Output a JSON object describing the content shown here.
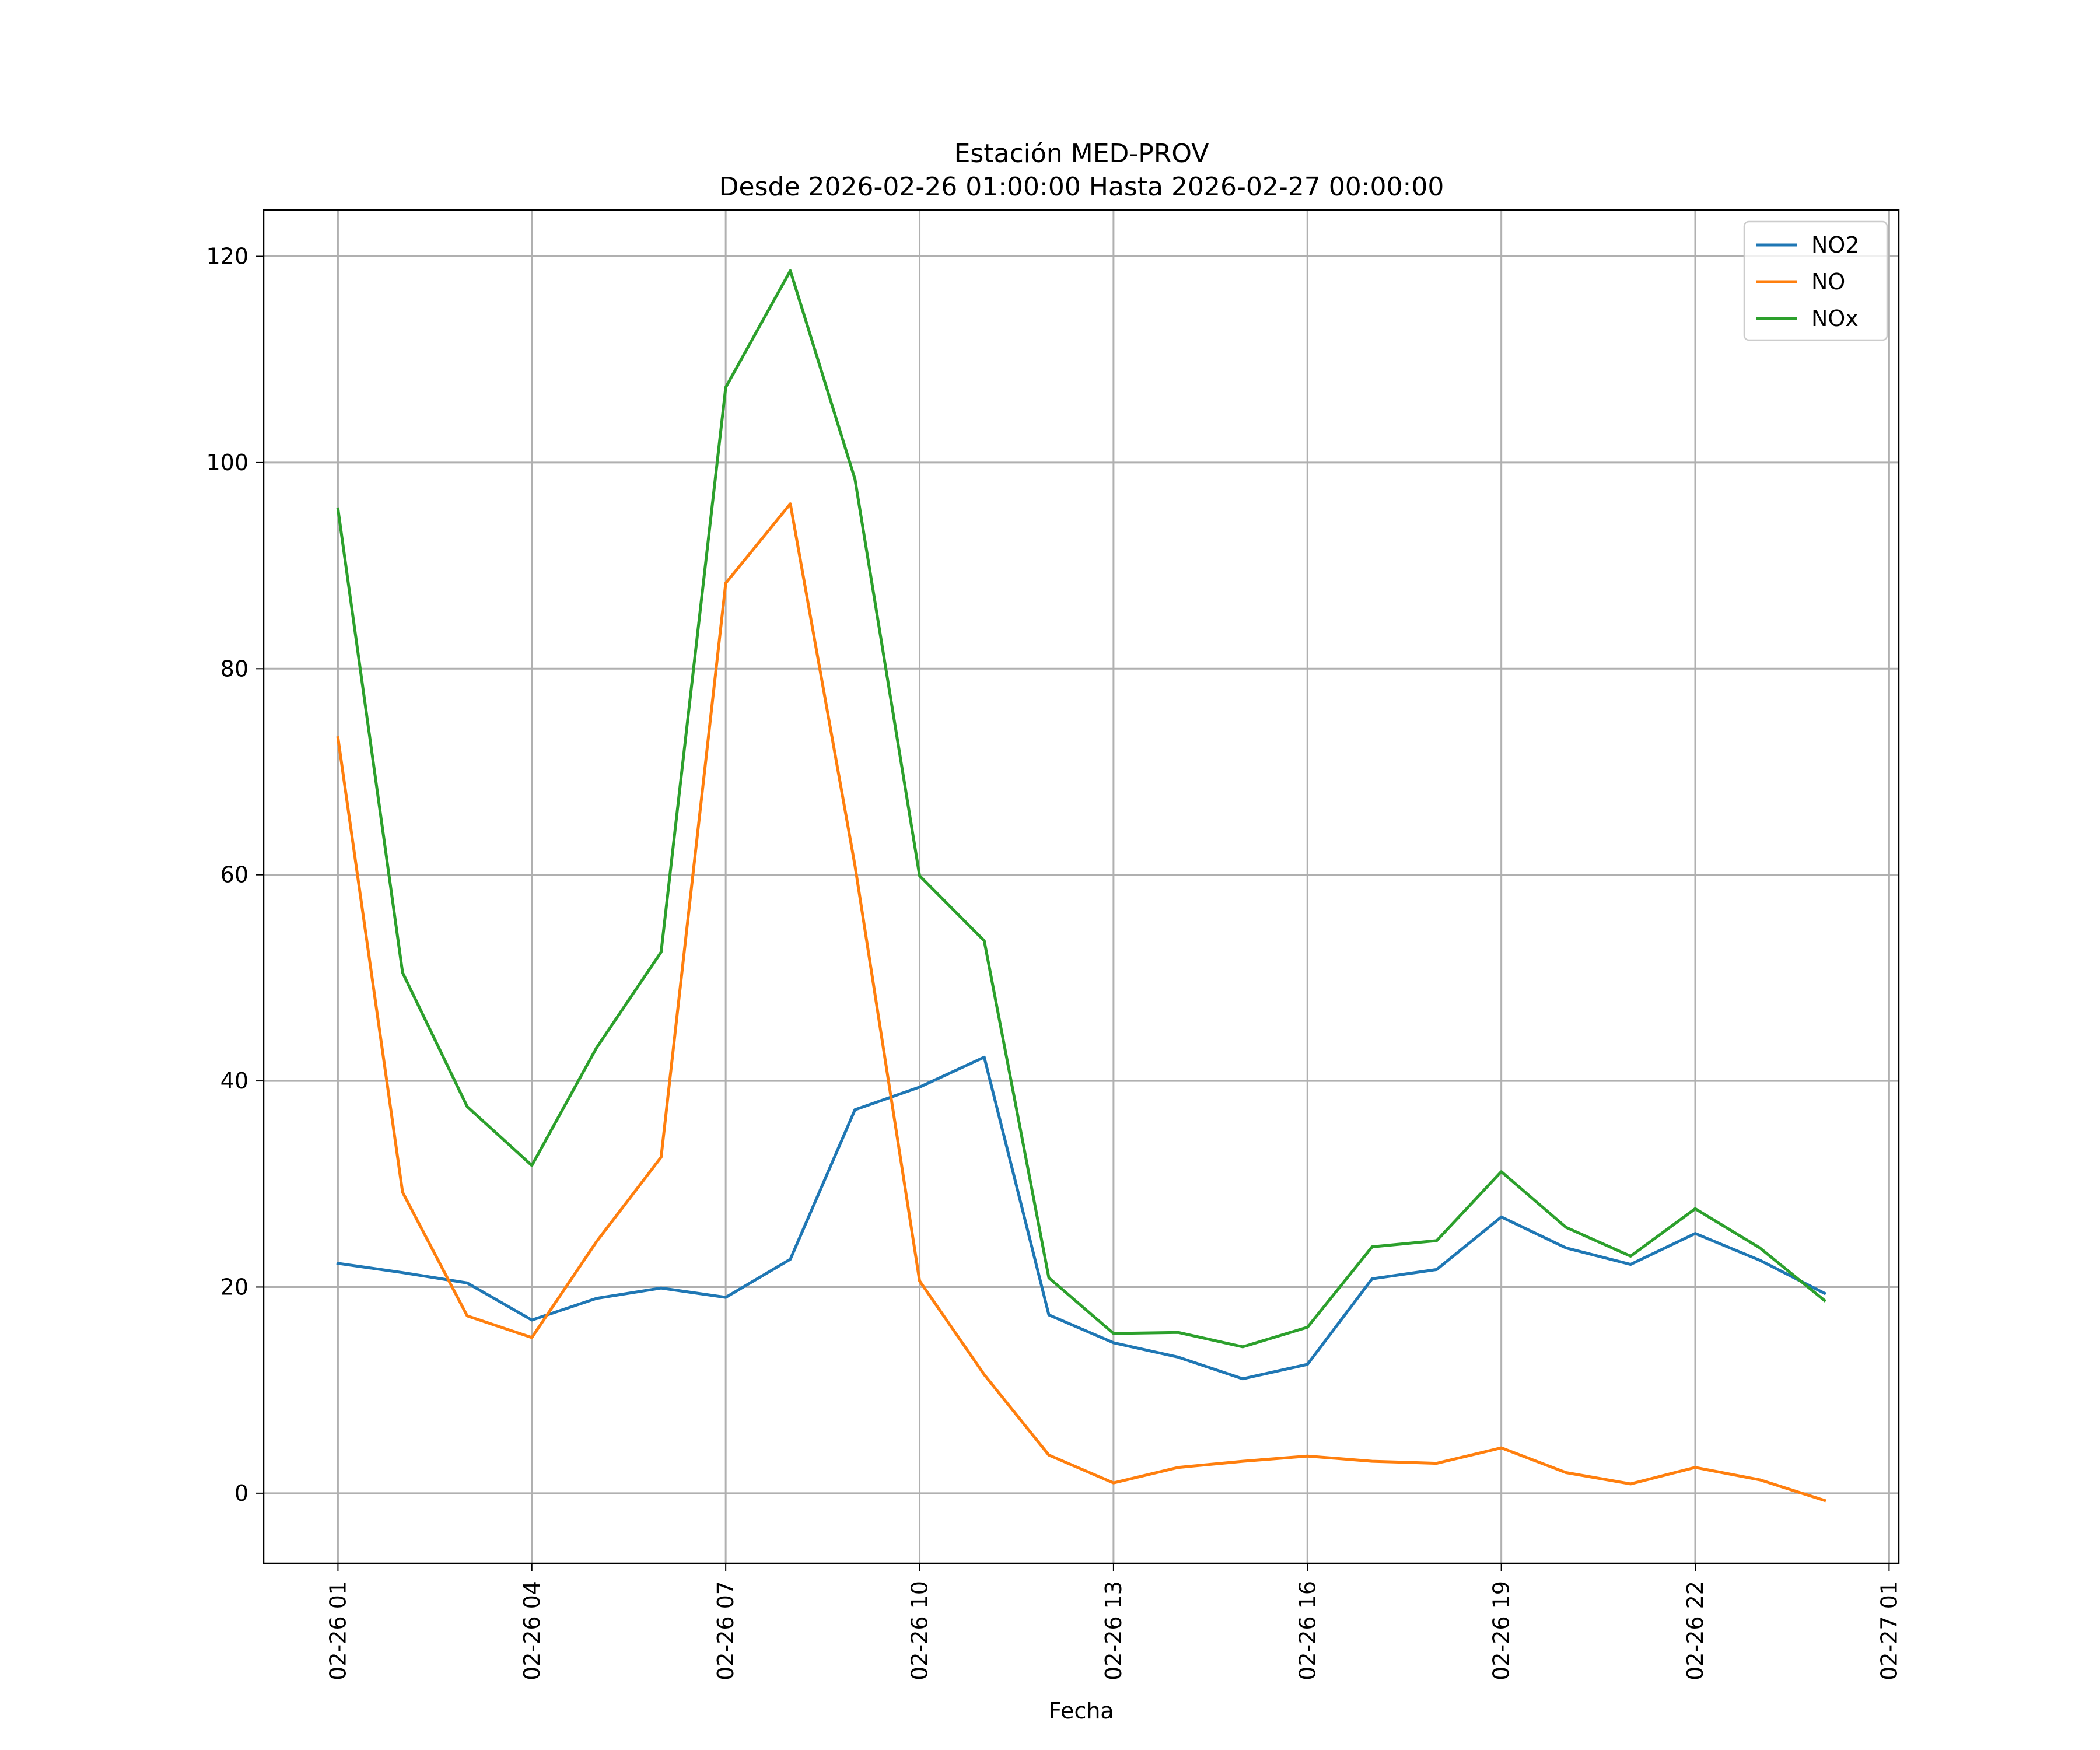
{
  "chart_data": {
    "type": "line",
    "title_line1": "Estación MED-PROV",
    "title_line2": "Desde 2026-02-26 01:00:00 Hasta 2026-02-27 00:00:00",
    "xlabel": "Fecha",
    "ylabel": "",
    "ylim": [
      -6.8,
      124.5
    ],
    "xlim_hours": [
      -1.15,
      24.15
    ],
    "grid": true,
    "legend_position": "top-right",
    "x": [
      "02-26 01:00",
      "02-26 02:00",
      "02-26 03:00",
      "02-26 04:00",
      "02-26 05:00",
      "02-26 06:00",
      "02-26 07:00",
      "02-26 08:00",
      "02-26 09:00",
      "02-26 10:00",
      "02-26 11:00",
      "02-26 12:00",
      "02-26 13:00",
      "02-26 14:00",
      "02-26 15:00",
      "02-26 16:00",
      "02-26 17:00",
      "02-26 18:00",
      "02-26 19:00",
      "02-26 20:00",
      "02-26 21:00",
      "02-26 22:00",
      "02-26 23:00",
      "02-27 00:00"
    ],
    "x_ticks": [
      {
        "label": "02-26 01",
        "hour": 0
      },
      {
        "label": "02-26 04",
        "hour": 3
      },
      {
        "label": "02-26 07",
        "hour": 6
      },
      {
        "label": "02-26 10",
        "hour": 9
      },
      {
        "label": "02-26 13",
        "hour": 12
      },
      {
        "label": "02-26 16",
        "hour": 15
      },
      {
        "label": "02-26 19",
        "hour": 18
      },
      {
        "label": "02-26 22",
        "hour": 21
      },
      {
        "label": "02-27 01",
        "hour": 24
      }
    ],
    "y_ticks": [
      0,
      20,
      40,
      60,
      80,
      100,
      120
    ],
    "series": [
      {
        "name": "NO2",
        "color": "#1f77b4",
        "values": [
          22.3,
          21.4,
          20.4,
          16.8,
          18.9,
          19.9,
          19.0,
          22.7,
          37.2,
          39.4,
          42.3,
          17.3,
          14.6,
          13.2,
          11.1,
          12.5,
          20.8,
          21.7,
          26.8,
          23.8,
          22.2,
          25.2,
          22.6,
          19.4
        ]
      },
      {
        "name": "NO",
        "color": "#ff7f0e",
        "values": [
          73.3,
          29.2,
          17.2,
          15.1,
          24.4,
          32.6,
          88.3,
          96.0,
          60.9,
          20.6,
          11.5,
          3.7,
          1.0,
          2.5,
          3.1,
          3.6,
          3.1,
          2.9,
          4.4,
          2.0,
          0.9,
          2.5,
          1.3,
          -0.7
        ]
      },
      {
        "name": "NOx",
        "color": "#2ca02c",
        "values": [
          95.5,
          50.5,
          37.5,
          31.8,
          43.2,
          52.5,
          107.3,
          118.6,
          98.4,
          59.9,
          53.6,
          20.9,
          15.5,
          15.6,
          14.2,
          16.1,
          23.9,
          24.5,
          31.2,
          25.8,
          23.0,
          27.6,
          23.8,
          18.7
        ]
      }
    ]
  }
}
